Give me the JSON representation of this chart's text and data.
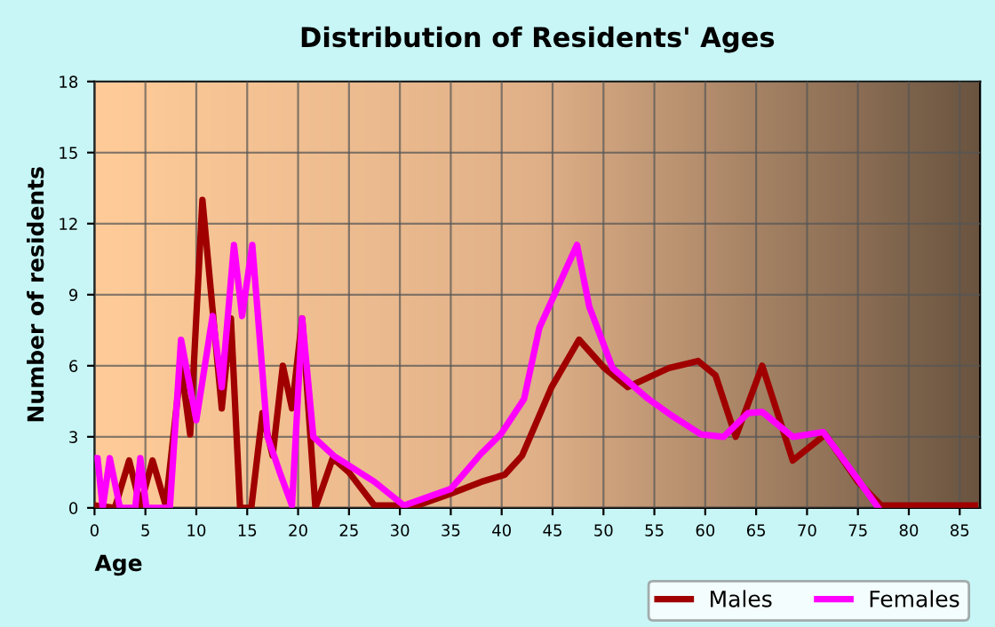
{
  "chart_data": {
    "type": "line",
    "title": "Distribution of Residents' Ages",
    "xlabel": "Age",
    "ylabel": "Number of residents",
    "xlim": [
      0,
      87
    ],
    "xticks": [
      0,
      5,
      10,
      15,
      20,
      25,
      30,
      35,
      40,
      45,
      50,
      55,
      60,
      65,
      70,
      75,
      80,
      85
    ],
    "ylim": [
      0,
      18
    ],
    "yticks": [
      0,
      3,
      6,
      9,
      12,
      15,
      18
    ],
    "grid": true,
    "legend": "bottom right",
    "marker": "none",
    "line_style": "solid",
    "series": [
      {
        "name": "Males",
        "color": "#a00000",
        "x": [
          0,
          2,
          3.4,
          4.5,
          5.7,
          7,
          8.5,
          9.4,
          10.6,
          12.5,
          13.4,
          14.3,
          15.4,
          16.5,
          17.5,
          18.5,
          19.4,
          20.4,
          21.7,
          23.4,
          25,
          27.5,
          31.7,
          35,
          38,
          40.3,
          42,
          44.9,
          47.6,
          50.1,
          52.4,
          56.4,
          59.3,
          61,
          63,
          65.6,
          68.6,
          71.8,
          75,
          77.3,
          80,
          86.5
        ],
        "values": [
          0.1,
          0,
          2,
          0.1,
          2,
          0.1,
          6,
          3.1,
          13,
          4.2,
          8,
          0,
          0,
          4,
          2.2,
          6,
          4.2,
          8,
          0,
          2.1,
          1.5,
          0.1,
          0.1,
          0.6,
          1.1,
          1.4,
          2.2,
          5.1,
          7.1,
          5.9,
          5.1,
          5.9,
          6.2,
          5.6,
          3,
          6,
          2,
          3.1,
          1.1,
          0.1,
          0.1,
          0.1
        ]
      },
      {
        "name": "Females",
        "color": "#ff00ff",
        "x": [
          0,
          0.3,
          0.8,
          1.5,
          2.5,
          4,
          4.5,
          5.1,
          7.4,
          8.5,
          10,
          11.6,
          12.5,
          13.7,
          14.5,
          15.5,
          17,
          18.2,
          19.4,
          20.4,
          21.5,
          23.5,
          27.5,
          30.4,
          35,
          38,
          39.9,
          42.2,
          43.7,
          47.4,
          48.6,
          50.9,
          54.4,
          56.7,
          59.6,
          61.8,
          64.2,
          65.6,
          68.6,
          71.6,
          75,
          77
        ],
        "values": [
          2.1,
          2.1,
          0,
          2.1,
          0,
          0,
          2.1,
          0,
          0,
          7.1,
          3.7,
          8.1,
          5.1,
          11.1,
          8.1,
          11.1,
          3,
          1.5,
          0.1,
          8,
          3,
          2.2,
          1.1,
          0.1,
          0.8,
          2.3,
          3.1,
          4.6,
          7.6,
          11.1,
          8.5,
          5.9,
          4.6,
          3.9,
          3.1,
          3,
          4,
          4.05,
          3,
          3.2,
          1.2,
          0
        ]
      }
    ]
  }
}
